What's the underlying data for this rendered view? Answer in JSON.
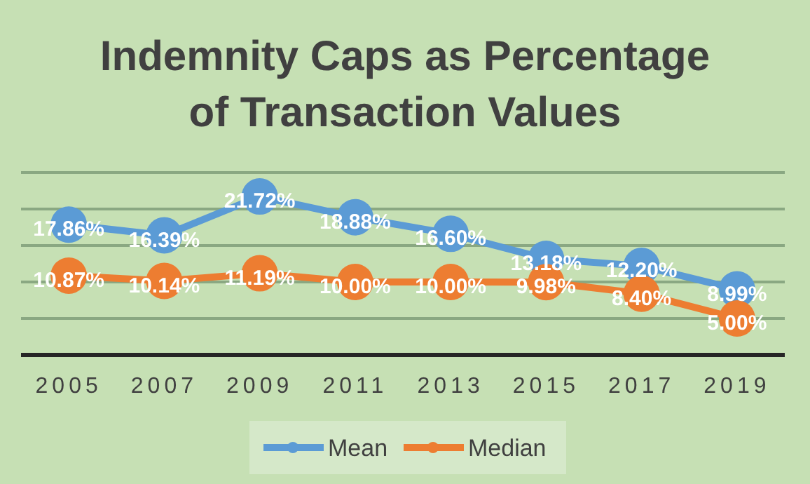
{
  "chart_data": {
    "type": "line",
    "title": "Indemnity Caps as Percentage of Transaction Values",
    "categories": [
      "2005",
      "2007",
      "2009",
      "2011",
      "2013",
      "2015",
      "2017",
      "2019"
    ],
    "series": [
      {
        "name": "Mean",
        "color": "#5b9bd5",
        "values": [
          17.86,
          16.39,
          21.72,
          18.88,
          16.6,
          13.18,
          12.2,
          8.99
        ],
        "value_labels": [
          "17.86%",
          "16.39%",
          "21.72%",
          "18.88%",
          "16.60%",
          "13.18%",
          "12.20%",
          "8.99%"
        ]
      },
      {
        "name": "Median",
        "color": "#ed7d31",
        "values": [
          10.87,
          10.14,
          11.19,
          10.0,
          10.0,
          9.98,
          8.4,
          5.0
        ],
        "value_labels": [
          "10.87%",
          "10.14%",
          "11.19%",
          "10.00%",
          "10.00%",
          "9.98%",
          "8.40%",
          "5.00%"
        ]
      }
    ],
    "ylim": [
      0,
      25
    ],
    "yticks": [
      {
        "value": 0,
        "label": null
      },
      {
        "value": 5,
        "label": null
      },
      {
        "value": 10,
        "label": null
      },
      {
        "value": 15,
        "label": null
      },
      {
        "value": 20,
        "label": null
      },
      {
        "value": 25,
        "label": null
      }
    ],
    "tick_labels": "x",
    "grid": "y",
    "legend": "bottom",
    "marker": "circle",
    "line_style": "solid"
  }
}
